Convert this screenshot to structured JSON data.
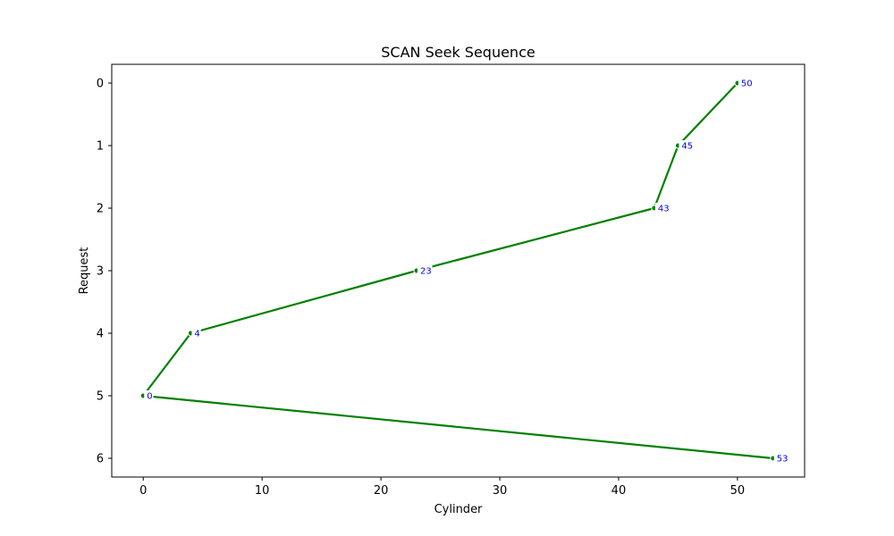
{
  "chart_data": {
    "type": "line",
    "title": "SCAN Seek Sequence",
    "xlabel": "Cylinder",
    "ylabel": "Request",
    "xlim": [
      -2.65,
      55.65
    ],
    "ylim": [
      6.3,
      -0.3
    ],
    "y_inverted": true,
    "grid": false,
    "x_ticks": [
      0,
      10,
      20,
      30,
      40,
      50
    ],
    "y_ticks": [
      0,
      1,
      2,
      3,
      4,
      5,
      6
    ],
    "series": [
      {
        "x": [
          50,
          45,
          43,
          23,
          4,
          0,
          53
        ],
        "y": [
          0,
          1,
          2,
          3,
          4,
          5,
          6
        ],
        "labels": [
          "50",
          "45",
          "43",
          "23",
          "4",
          "0",
          "53"
        ],
        "color": "#008000"
      }
    ],
    "label_color": "#0000ff"
  }
}
